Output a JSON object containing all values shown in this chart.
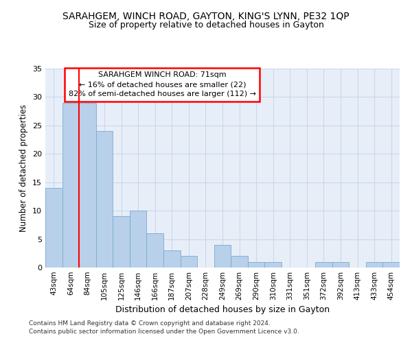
{
  "title1": "SARAHGEM, WINCH ROAD, GAYTON, KING'S LYNN, PE32 1QP",
  "title2": "Size of property relative to detached houses in Gayton",
  "xlabel": "Distribution of detached houses by size in Gayton",
  "ylabel": "Number of detached properties",
  "categories": [
    "43sqm",
    "64sqm",
    "84sqm",
    "105sqm",
    "125sqm",
    "146sqm",
    "166sqm",
    "187sqm",
    "207sqm",
    "228sqm",
    "249sqm",
    "269sqm",
    "290sqm",
    "310sqm",
    "331sqm",
    "351sqm",
    "372sqm",
    "392sqm",
    "413sqm",
    "433sqm",
    "454sqm"
  ],
  "values": [
    14,
    29,
    29,
    24,
    9,
    10,
    6,
    3,
    2,
    0,
    4,
    2,
    1,
    1,
    0,
    0,
    1,
    1,
    0,
    1,
    1
  ],
  "bar_color": "#b8d0ea",
  "bar_edge_color": "#7aaacf",
  "grid_color": "#c8d8ec",
  "background_color": "#e8eef8",
  "annotation_line1": "SARAHGEM WINCH ROAD: 71sqm",
  "annotation_line2": "← 16% of detached houses are smaller (22)",
  "annotation_line3": "82% of semi-detached houses are larger (112) →",
  "red_line_x": 1.5,
  "ylim": [
    0,
    35
  ],
  "yticks": [
    0,
    5,
    10,
    15,
    20,
    25,
    30,
    35
  ],
  "footer1": "Contains HM Land Registry data © Crown copyright and database right 2024.",
  "footer2": "Contains public sector information licensed under the Open Government Licence v3.0."
}
